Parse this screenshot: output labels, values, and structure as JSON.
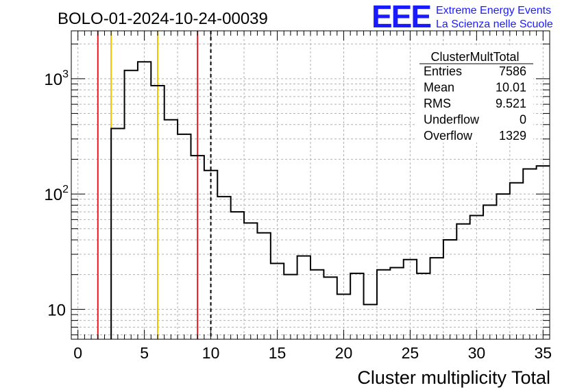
{
  "header": {
    "run_title": "BOLO-01-2024-10-24-00039",
    "logo_text": "EEE",
    "logo_line1": "Extreme Energy Events",
    "logo_line2": "La Scienza nelle Scuole",
    "logo_color": "#1a1aff"
  },
  "stats": {
    "name": "ClusterMultTotal",
    "rows": [
      {
        "label": "Entries",
        "value": "7586"
      },
      {
        "label": "Mean",
        "value": "10.01"
      },
      {
        "label": "RMS",
        "value": "9.521"
      },
      {
        "label": "Underflow",
        "value": "0"
      },
      {
        "label": "Overflow",
        "value": "1329"
      }
    ]
  },
  "chart_data": {
    "type": "bar",
    "histogram": true,
    "xlabel": "Cluster multiplicity Total",
    "ylabel": "",
    "xlim": [
      -0.5,
      35.5
    ],
    "ylim": [
      5.5,
      2600
    ],
    "yscale": "log",
    "grid": true,
    "xticks": [
      0,
      5,
      10,
      15,
      20,
      25,
      30,
      35
    ],
    "yticks": [
      {
        "value": 10,
        "label": "10"
      },
      {
        "value": 100,
        "label": "10",
        "sup": "2"
      },
      {
        "value": 1000,
        "label": "10",
        "sup": "3"
      }
    ],
    "bin_width": 1,
    "bin_centers": [
      0,
      1,
      2,
      3,
      4,
      5,
      6,
      7,
      8,
      9,
      10,
      11,
      12,
      13,
      14,
      15,
      16,
      17,
      18,
      19,
      20,
      21,
      22,
      23,
      24,
      25,
      26,
      27,
      28,
      29,
      30,
      31,
      32,
      33,
      34,
      35
    ],
    "values": [
      0,
      0,
      0,
      370,
      1180,
      1400,
      870,
      440,
      330,
      215,
      160,
      95,
      70,
      56,
      46,
      25,
      20,
      29,
      22,
      19,
      13.5,
      20.5,
      11,
      22,
      23,
      27,
      20.5,
      28,
      40,
      55,
      65,
      80,
      100,
      125,
      165,
      175
    ],
    "line_color": "#000000",
    "markers": [
      {
        "x": 1.5,
        "color": "#e8171d",
        "style": "solid"
      },
      {
        "x": 2.5,
        "color": "#f5c000",
        "style": "solid"
      },
      {
        "x": 6.0,
        "color": "#f5c000",
        "style": "solid"
      },
      {
        "x": 9.0,
        "color": "#e8171d",
        "style": "solid"
      },
      {
        "x": 10.0,
        "color": "#000000",
        "style": "dashed"
      }
    ]
  }
}
